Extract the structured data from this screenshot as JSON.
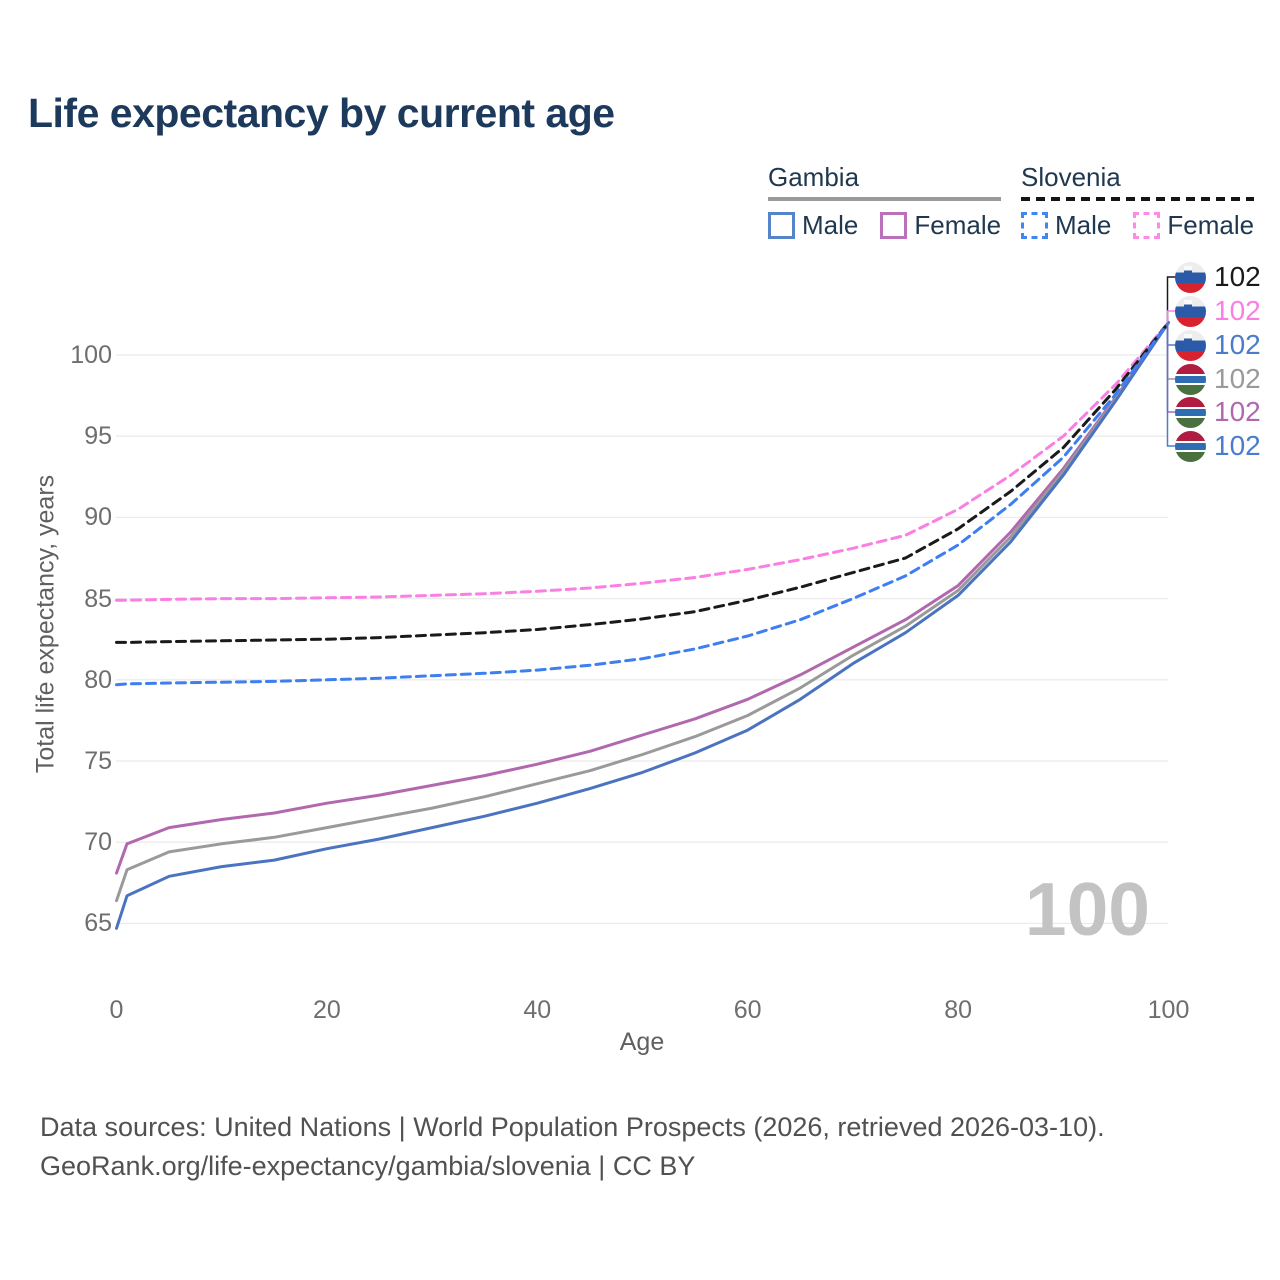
{
  "title": "Life expectancy by current age",
  "legend": {
    "groups": [
      {
        "id": "gambia",
        "label": "Gambia",
        "line_style": "solid",
        "items": [
          {
            "label": "Male",
            "color": "#5584cb",
            "dashed": false
          },
          {
            "label": "Female",
            "color": "#ba70ba",
            "dashed": false
          }
        ]
      },
      {
        "id": "slovenia",
        "label": "Slovenia",
        "line_style": "dashed",
        "items": [
          {
            "label": "Male",
            "color": "#4285f4",
            "dashed": true
          },
          {
            "label": "Female",
            "color": "#fc8ae6",
            "dashed": true
          }
        ]
      }
    ]
  },
  "chart_data": {
    "type": "line",
    "title": "Life expectancy by current age",
    "xlabel": "Age",
    "ylabel": "Total life expectancy, years",
    "xticks": [
      0,
      20,
      40,
      60,
      80,
      100
    ],
    "yticks": [
      65,
      70,
      75,
      80,
      85,
      90,
      95,
      100
    ],
    "xlim": [
      0,
      100
    ],
    "ylim": [
      63,
      103.5
    ],
    "grid": "horizontal",
    "legend_position": "top-right",
    "x": [
      0,
      1,
      5,
      10,
      15,
      20,
      25,
      30,
      35,
      40,
      45,
      50,
      55,
      60,
      65,
      70,
      75,
      80,
      85,
      90,
      95,
      100
    ],
    "series": [
      {
        "name": "Gambia Female",
        "color": "#b168ae",
        "dashed": false,
        "values": [
          68.1,
          69.9,
          70.9,
          71.4,
          71.8,
          72.4,
          72.9,
          73.5,
          74.1,
          74.8,
          75.6,
          76.6,
          77.6,
          78.8,
          80.3,
          82.0,
          83.7,
          85.8,
          89.1,
          93.0,
          97.4,
          102
        ]
      },
      {
        "name": "Gambia All",
        "color": "#9a9a9a",
        "dashed": false,
        "values": [
          66.4,
          68.3,
          69.4,
          69.9,
          70.3,
          70.9,
          71.5,
          72.1,
          72.8,
          73.6,
          74.4,
          75.4,
          76.5,
          77.8,
          79.5,
          81.5,
          83.3,
          85.5,
          88.8,
          92.8,
          97.3,
          102
        ]
      },
      {
        "name": "Gambia Male",
        "color": "#4a74c0",
        "dashed": false,
        "values": [
          64.7,
          66.7,
          67.9,
          68.5,
          68.9,
          69.6,
          70.2,
          70.9,
          71.6,
          72.4,
          73.3,
          74.3,
          75.5,
          76.9,
          78.8,
          81.0,
          82.9,
          85.2,
          88.5,
          92.6,
          97.2,
          102
        ]
      },
      {
        "name": "Slovenia Female",
        "color": "#fb7ee3",
        "dashed": true,
        "values": [
          84.9,
          84.9,
          84.95,
          85.0,
          85.0,
          85.05,
          85.1,
          85.2,
          85.3,
          85.45,
          85.65,
          85.95,
          86.3,
          86.8,
          87.4,
          88.1,
          88.9,
          90.5,
          92.6,
          95.0,
          98.2,
          102
        ]
      },
      {
        "name": "Slovenia All",
        "color": "#1a1a1a",
        "dashed": true,
        "values": [
          82.3,
          82.3,
          82.35,
          82.4,
          82.45,
          82.5,
          82.6,
          82.75,
          82.9,
          83.1,
          83.4,
          83.75,
          84.2,
          84.9,
          85.7,
          86.6,
          87.5,
          89.3,
          91.6,
          94.3,
          97.9,
          102
        ]
      },
      {
        "name": "Slovenia Male",
        "color": "#3d7ef2",
        "dashed": true,
        "values": [
          79.7,
          79.75,
          79.8,
          79.85,
          79.9,
          80.0,
          80.1,
          80.25,
          80.4,
          80.6,
          80.9,
          81.3,
          81.9,
          82.7,
          83.7,
          85.0,
          86.4,
          88.3,
          90.8,
          93.7,
          97.6,
          102
        ]
      }
    ]
  },
  "end_labels": [
    {
      "value": "102",
      "flag": "slovenia",
      "series": "Slovenia All",
      "color": "#1a1a1a"
    },
    {
      "value": "102",
      "flag": "slovenia",
      "series": "Slovenia Female",
      "color": "#fb7ee3"
    },
    {
      "value": "102",
      "flag": "slovenia",
      "series": "Slovenia Male",
      "color": "#4a7ccd"
    },
    {
      "value": "102",
      "flag": "gambia",
      "series": "Gambia All",
      "color": "#9a9a9a"
    },
    {
      "value": "102",
      "flag": "gambia",
      "series": "Gambia Female",
      "color": "#b168ae"
    },
    {
      "value": "102",
      "flag": "gambia",
      "series": "Gambia Male",
      "color": "#4a7ccd"
    }
  ],
  "watermark": "100",
  "footer": {
    "line1": "Data sources: United Nations | World Population Prospects (2026, retrieved 2026-03-10).",
    "line2": "GeoRank.org/life-expectancy/gambia/slovenia | CC BY"
  }
}
